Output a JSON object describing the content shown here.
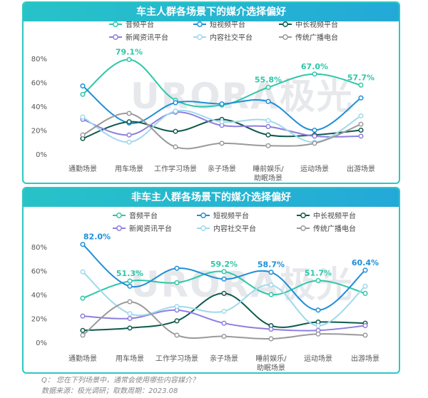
{
  "notes": {
    "q": "Q：  您在下列场景中，通常会使用哪些内容媒介？",
    "source": "数据来源：极光调研；取数周期：2023.08"
  },
  "watermark": "URORA极光",
  "chart_data": [
    {
      "type": "line",
      "title": "车主人群各场景下的媒介选择偏好",
      "categories": [
        "通勤场景",
        "用车场景",
        "工作学习场景",
        "亲子场景",
        "睡前娱乐/助眠场景",
        "运动场景",
        "出游场景"
      ],
      "category_lines": [
        [
          "通勤场景"
        ],
        [
          "用车场景"
        ],
        [
          "工作学习场景"
        ],
        [
          "亲子场景"
        ],
        [
          "睡前娱乐/",
          "助眠场景"
        ],
        [
          "运动场景"
        ],
        [
          "出游场景"
        ]
      ],
      "ylim": [
        0,
        80
      ],
      "yticks": [
        0,
        20,
        40,
        60,
        80
      ],
      "ytick_labels": [
        "0%",
        "20%",
        "40%",
        "60%",
        "80%"
      ],
      "grid": false,
      "legend_position": "top",
      "series": [
        {
          "name": "音频平台",
          "color": "#2ec7a7",
          "values": [
            50,
            79.1,
            45,
            41,
            55.8,
            67.0,
            57.7
          ]
        },
        {
          "name": "短视频平台",
          "color": "#1e8fd8",
          "values": [
            57,
            26,
            43,
            42,
            44,
            20,
            47
          ]
        },
        {
          "name": "中长视频平台",
          "color": "#0e5a4e",
          "values": [
            13,
            27,
            19,
            29,
            16,
            16,
            20
          ]
        },
        {
          "name": "新闻资讯平台",
          "color": "#8e7ee0",
          "values": [
            29,
            16,
            35,
            24,
            23,
            15,
            15
          ]
        },
        {
          "name": "内容社交平台",
          "color": "#9fd9ee",
          "values": [
            31,
            10,
            36,
            27,
            28,
            10,
            32
          ]
        },
        {
          "name": "传统广播电台",
          "color": "#9a9a9a",
          "values": [
            16,
            34,
            6,
            9,
            7,
            9,
            25
          ]
        }
      ],
      "data_labels": [
        {
          "series": 0,
          "index": 1,
          "text": "79.1%"
        },
        {
          "series": 0,
          "index": 4,
          "text": "55.8%"
        },
        {
          "series": 0,
          "index": 5,
          "text": "67.0%"
        },
        {
          "series": 0,
          "index": 6,
          "text": "57.7%"
        }
      ]
    },
    {
      "type": "line",
      "title": "非车主人群各场景下的媒介选择偏好",
      "categories": [
        "通勤场景",
        "用车场景",
        "工作学习场景",
        "亲子场景",
        "睡前娱乐/助眠场景",
        "运动场景",
        "出游场景"
      ],
      "category_lines": [
        [
          "通勤场景"
        ],
        [
          "用车场景"
        ],
        [
          "工作学习场景"
        ],
        [
          "亲子场景"
        ],
        [
          "睡前娱乐/",
          "助眠场景"
        ],
        [
          "运动场景"
        ],
        [
          "出游场景"
        ]
      ],
      "ylim": [
        0,
        80
      ],
      "yticks": [
        0,
        20,
        40,
        60,
        80
      ],
      "ytick_labels": [
        "0%",
        "20%",
        "40%",
        "60%",
        "80%"
      ],
      "grid": false,
      "legend_position": "top",
      "series": [
        {
          "name": "音频平台",
          "color": "#2ec7a7",
          "values": [
            37,
            51.3,
            50,
            59.2,
            40,
            51.7,
            41
          ]
        },
        {
          "name": "短视频平台",
          "color": "#1e8fd8",
          "values": [
            82.0,
            47,
            62,
            53,
            58.7,
            27,
            60.4
          ]
        },
        {
          "name": "中长视频平台",
          "color": "#0e5a4e",
          "values": [
            10,
            12,
            18,
            41,
            14,
            17,
            16
          ]
        },
        {
          "name": "新闻资讯平台",
          "color": "#8e7ee0",
          "values": [
            22,
            20,
            27,
            16,
            11,
            10,
            14
          ]
        },
        {
          "name": "内容社交平台",
          "color": "#9fd9ee",
          "values": [
            59,
            24,
            30,
            26,
            48,
            14,
            47
          ]
        },
        {
          "name": "传统广播电台",
          "color": "#9a9a9a",
          "values": [
            6,
            34,
            6,
            5,
            3,
            7,
            6
          ]
        }
      ],
      "data_labels": [
        {
          "series": 1,
          "index": 0,
          "text": "82.0%"
        },
        {
          "series": 0,
          "index": 1,
          "text": "51.3%"
        },
        {
          "series": 0,
          "index": 3,
          "text": "59.2%"
        },
        {
          "series": 1,
          "index": 4,
          "text": "58.7%"
        },
        {
          "series": 0,
          "index": 5,
          "text": "51.7%"
        },
        {
          "series": 1,
          "index": 6,
          "text": "60.4%"
        }
      ]
    }
  ]
}
